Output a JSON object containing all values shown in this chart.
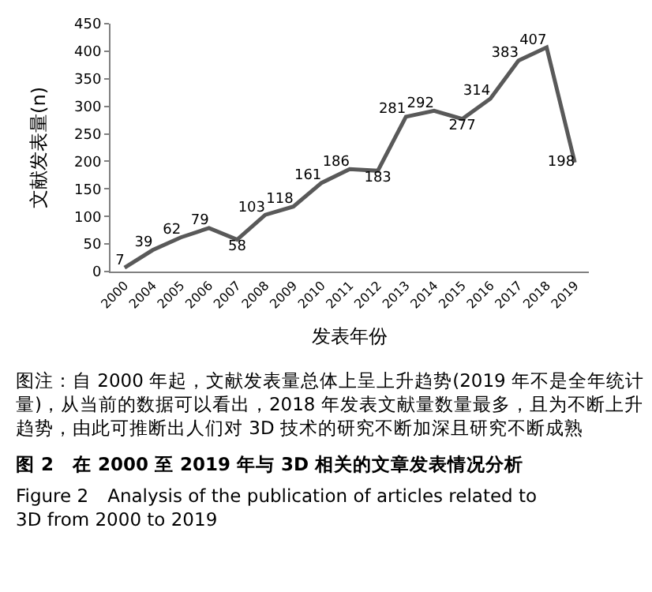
{
  "chart_data": {
    "type": "line",
    "ylabel": "文献发表量(n)",
    "xlabel": "发表年份",
    "categories": [
      "2000",
      "2004",
      "2005",
      "2006",
      "2007",
      "2008",
      "2009",
      "2010",
      "2011",
      "2012",
      "2013",
      "2014",
      "2015",
      "2016",
      "2017",
      "2018",
      "2019"
    ],
    "series": [
      {
        "color": "#595959",
        "values": [
          7,
          39,
          62,
          79,
          58,
          103,
          118,
          161,
          186,
          183,
          281,
          292,
          277,
          314,
          383,
          407,
          198
        ]
      }
    ],
    "ylim": [
      0,
      450
    ],
    "yticks": [
      0,
      50,
      100,
      150,
      200,
      250,
      300,
      350,
      400,
      450
    ],
    "legend": false,
    "marker": "none",
    "line_style": "solid",
    "data_labels": true,
    "annotations": [
      "图注：自 2000 年起，文献发表量总体上呈上升趋势(2019 年不是全年统计量)，从当前的数据可以看出，2018 年发表文献量数量最多，且为不断上升趋势，由此可推断出人们对 3D 技术的研究不断加深且研究不断成熟",
      "图 2　在 2000 至 2019 年与 3D 相关的文章发表情况分析",
      "Figure 2　Analysis of the publication of articles related to 3D from 2000 to 2019"
    ]
  }
}
